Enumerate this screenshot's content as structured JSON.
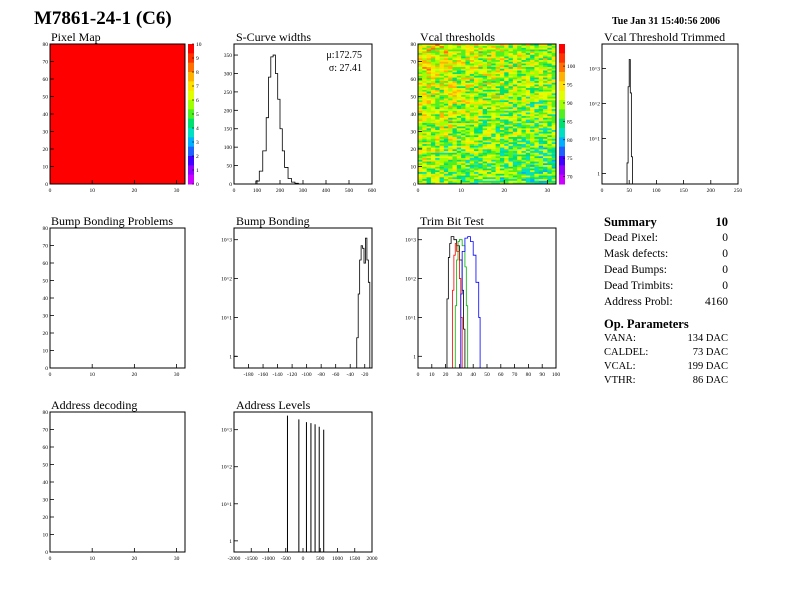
{
  "header": {
    "title": "M7861-24-1 (C6)",
    "datestamp": "Tue Jan 31 15:40:56 2006"
  },
  "summary": {
    "title": "Summary",
    "title_value": "10",
    "rows": [
      {
        "label": "Dead Pixel:",
        "value": "0"
      },
      {
        "label": "Mask defects:",
        "value": "0"
      },
      {
        "label": "Dead Bumps:",
        "value": "0"
      },
      {
        "label": "Dead Trimbits:",
        "value": "0"
      },
      {
        "label": "Address Probl:",
        "value": "4160"
      }
    ],
    "op_title": "Op. Parameters",
    "op_rows": [
      {
        "label": "VANA:",
        "value": "134 DAC"
      },
      {
        "label": "CALDEL:",
        "value": "73 DAC"
      },
      {
        "label": "VCAL:",
        "value": "199 DAC"
      },
      {
        "label": "VTHR:",
        "value": "86 DAC"
      }
    ]
  },
  "palette": [
    "#ff0000",
    "#ff3300",
    "#ff7000",
    "#ffb000",
    "#ffe000",
    "#e0ff00",
    "#a0ff00",
    "#50f020",
    "#00e070",
    "#00e0c0",
    "#00b0ff",
    "#2060ff",
    "#4000ff",
    "#9000ff",
    "#cc00ff"
  ],
  "chart_data": [
    {
      "type": "heatmap",
      "title": "Pixel Map",
      "xlim": [
        0,
        32
      ],
      "ylim": [
        0,
        80
      ],
      "xticks": [
        0,
        10,
        20,
        30
      ],
      "yticks": [
        0,
        10,
        20,
        30,
        40,
        50,
        60,
        70,
        80
      ],
      "zlim": [
        0,
        10
      ],
      "zticks": [
        0,
        1,
        2,
        3,
        4,
        5,
        6,
        7,
        8,
        9,
        10
      ],
      "uniform_value": 10
    },
    {
      "type": "histogram",
      "title": "S-Curve widths",
      "xlim": [
        0,
        600
      ],
      "ylim": [
        0,
        380
      ],
      "xticks": [
        0,
        100,
        200,
        300,
        400,
        500,
        600
      ],
      "yticks": [
        0,
        50,
        100,
        150,
        200,
        250,
        300,
        350
      ],
      "x": [
        80,
        95,
        110,
        125,
        140,
        150,
        160,
        170,
        180,
        190,
        200,
        210,
        220,
        235,
        250,
        265,
        280
      ],
      "y": [
        0,
        8,
        35,
        90,
        180,
        290,
        345,
        350,
        300,
        230,
        150,
        90,
        45,
        15,
        5,
        2,
        0
      ],
      "stats": {
        "mean_label": "μ:",
        "mean": "172.75",
        "sigma_label": "σ:",
        "sigma": "27.41"
      }
    },
    {
      "type": "heatmap",
      "title": "Vcal thresholds",
      "xlim": [
        0,
        32
      ],
      "ylim": [
        0,
        80
      ],
      "xticks": [
        0,
        10,
        20,
        30
      ],
      "yticks": [
        0,
        10,
        20,
        30,
        40,
        50,
        60,
        70,
        80
      ],
      "zlim": [
        68,
        106
      ],
      "zticks": [
        70,
        75,
        80,
        85,
        90,
        95,
        100
      ],
      "z_mean": 89
    },
    {
      "type": "histogram",
      "title": "Vcal Threshold Trimmed",
      "xlim": [
        0,
        250
      ],
      "ylog": true,
      "ylim": [
        0.5,
        5000
      ],
      "xticks": [
        0,
        50,
        100,
        150,
        200,
        250
      ],
      "yticks": [
        1,
        10,
        100,
        1000
      ],
      "x": [
        44,
        46,
        48,
        50,
        52,
        54,
        56
      ],
      "y": [
        0.5,
        2,
        300,
        1800,
        200,
        3,
        0.5
      ]
    },
    {
      "type": "heatmap",
      "title": "Bump Bonding Problems",
      "xlim": [
        0,
        32
      ],
      "ylim": [
        0,
        80
      ],
      "xticks": [
        0,
        10,
        20,
        30
      ],
      "yticks": [
        0,
        10,
        20,
        30,
        40,
        50,
        60,
        70,
        80
      ]
    },
    {
      "type": "histogram",
      "title": "Bump Bonding",
      "xlim": [
        -200,
        -10
      ],
      "ylog": true,
      "ylim": [
        0.5,
        2000
      ],
      "xticks": [
        -180,
        -160,
        -140,
        -120,
        -100,
        -80,
        -60,
        -40,
        -20
      ],
      "yticks": [
        1,
        10,
        100,
        1000
      ],
      "x": [
        -33,
        -31,
        -29,
        -27,
        -25,
        -23,
        -21,
        -19,
        -17,
        -15,
        -13
      ],
      "y": [
        0.5,
        3,
        40,
        300,
        700,
        600,
        250,
        1100,
        300,
        80,
        0.5
      ],
      "extra": [
        {
          "x": [
            -200,
            -196
          ],
          "y": [
            1,
            1
          ]
        }
      ]
    },
    {
      "type": "histogram",
      "title": "Trim Bit Test",
      "xlim": [
        0,
        100
      ],
      "ylog": true,
      "ylim": [
        0.5,
        2000
      ],
      "xticks": [
        0,
        10,
        20,
        30,
        40,
        50,
        60,
        70,
        80,
        90,
        100
      ],
      "yticks": [
        1,
        10,
        100,
        1000
      ],
      "series": [
        {
          "name": "black",
          "color": "#000000",
          "x": [
            20,
            21,
            22,
            23,
            24,
            26,
            28,
            30,
            32,
            33,
            34
          ],
          "y": [
            0.5,
            30,
            350,
            800,
            1200,
            1000,
            700,
            300,
            50,
            5,
            0.5
          ]
        },
        {
          "name": "red",
          "color": "#ff0000",
          "x": [
            24,
            25,
            26,
            27,
            28,
            30,
            31,
            32
          ],
          "y": [
            0.5,
            50,
            400,
            800,
            500,
            100,
            10,
            0.5
          ]
        },
        {
          "name": "green",
          "color": "#00b000",
          "x": [
            26,
            27,
            28,
            29,
            30,
            32,
            34,
            35,
            36
          ],
          "y": [
            0.5,
            20,
            300,
            900,
            1000,
            700,
            200,
            20,
            0.5
          ]
        },
        {
          "name": "blue",
          "color": "#0000ff",
          "x": [
            30,
            31,
            32,
            34,
            36,
            38,
            40,
            42,
            44,
            45
          ],
          "y": [
            0.5,
            40,
            500,
            1100,
            1200,
            900,
            400,
            80,
            10,
            0.5
          ]
        }
      ]
    },
    {
      "type": "heatmap",
      "title": "Address decoding",
      "xlim": [
        0,
        32
      ],
      "ylim": [
        0,
        80
      ],
      "xticks": [
        0,
        10,
        20,
        30
      ],
      "yticks": [
        0,
        10,
        20,
        30,
        40,
        50,
        60,
        70,
        80
      ]
    },
    {
      "type": "histogram",
      "title": "Address Levels",
      "xlim": [
        -2000,
        2000
      ],
      "ylog": true,
      "ylim": [
        0.5,
        3000
      ],
      "xticks": [
        -2000,
        -1500,
        -1000,
        -500,
        0,
        500,
        1000,
        1500,
        2000
      ],
      "yticks": [
        1,
        10,
        100,
        1000
      ],
      "peaks": [
        {
          "x": -450,
          "y": 2400
        },
        {
          "x": -120,
          "y": 1900
        },
        {
          "x": 100,
          "y": 1600
        },
        {
          "x": 230,
          "y": 1500
        },
        {
          "x": 350,
          "y": 1400
        },
        {
          "x": 470,
          "y": 1200
        },
        {
          "x": 600,
          "y": 1000
        }
      ]
    }
  ]
}
